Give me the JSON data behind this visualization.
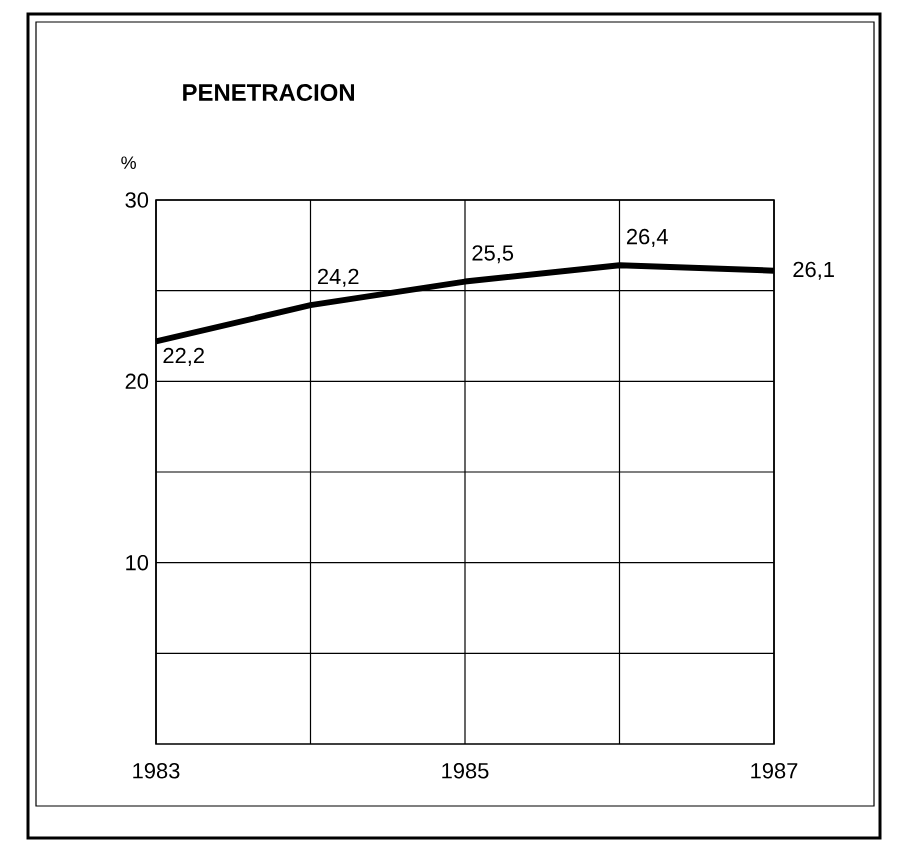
{
  "chart_data": {
    "type": "line",
    "title": "PENETRACION",
    "ylabel": "%",
    "x": [
      1983,
      1984,
      1985,
      1986,
      1987
    ],
    "values": [
      22.2,
      24.2,
      25.5,
      26.4,
      26.1
    ],
    "value_labels": [
      "22,2",
      "24,2",
      "25,5",
      "26,4",
      "26,1"
    ],
    "color": "#000000",
    "xlim": [
      1983,
      1987
    ],
    "xticks": [
      1983,
      {
        "value": 1984,
        "label": null
      },
      1985,
      {
        "value": 1986,
        "label": null
      },
      1987
    ],
    "ylim": [
      0,
      30
    ],
    "yticks": [
      {
        "value": 5,
        "label": null
      },
      10,
      {
        "value": 15,
        "label": null
      },
      20,
      {
        "value": 25,
        "label": null
      },
      30
    ],
    "grid": true
  }
}
